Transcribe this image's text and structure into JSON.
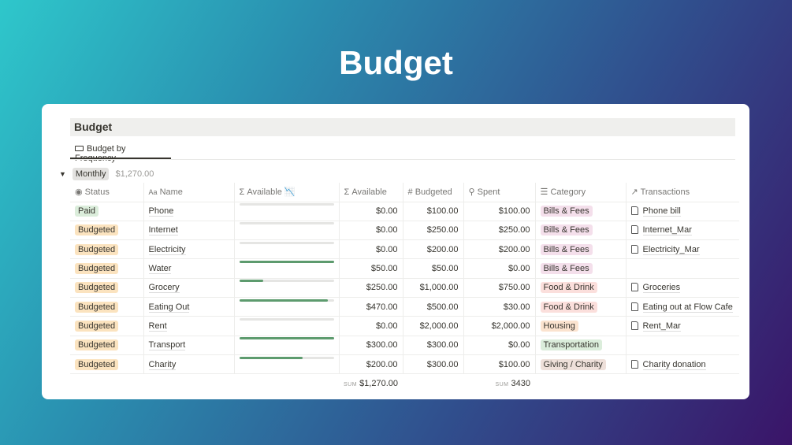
{
  "page_title": "Budget",
  "database": {
    "title": "Budget",
    "view_tab": "Budget by Frequency",
    "group": {
      "label": "Monthly",
      "sum": "$1,270.00"
    }
  },
  "columns": {
    "status": "Status",
    "name": "Name",
    "available_bar": "Available",
    "available": "Available",
    "budgeted": "Budgeted",
    "spent": "Spent",
    "category": "Category",
    "transactions": "Transactions"
  },
  "category_colors": {
    "Bills & Fees": "#f4dfeb",
    "Food & Drink": "#fbdfdc",
    "Housing": "#fbe3cf",
    "Transportation": "#dbeddb",
    "Giving / Charity": "#eee0da"
  },
  "status_colors": {
    "Paid": "#dbeddb",
    "Budgeted": "#fbe3bf"
  },
  "rows": [
    {
      "status": "Paid",
      "name": "Phone",
      "available": "$0.00",
      "budgeted": "$100.00",
      "spent": "$100.00",
      "category": "Bills & Fees",
      "transaction": "Phone bill",
      "progress": 0
    },
    {
      "status": "Budgeted",
      "name": "Internet",
      "available": "$0.00",
      "budgeted": "$250.00",
      "spent": "$250.00",
      "category": "Bills & Fees",
      "transaction": "Internet_Mar",
      "progress": 0
    },
    {
      "status": "Budgeted",
      "name": "Electricity",
      "available": "$0.00",
      "budgeted": "$200.00",
      "spent": "$200.00",
      "category": "Bills & Fees",
      "transaction": "Electricity_Mar",
      "progress": 0
    },
    {
      "status": "Budgeted",
      "name": "Water",
      "available": "$50.00",
      "budgeted": "$50.00",
      "spent": "$0.00",
      "category": "Bills & Fees",
      "transaction": "",
      "progress": 1
    },
    {
      "status": "Budgeted",
      "name": "Grocery",
      "available": "$250.00",
      "budgeted": "$1,000.00",
      "spent": "$750.00",
      "category": "Food & Drink",
      "transaction": "Groceries",
      "progress": 0.25
    },
    {
      "status": "Budgeted",
      "name": "Eating Out",
      "available": "$470.00",
      "budgeted": "$500.00",
      "spent": "$30.00",
      "category": "Food & Drink",
      "transaction": "Eating out at Flow Cafe",
      "progress": 0.94
    },
    {
      "status": "Budgeted",
      "name": "Rent",
      "available": "$0.00",
      "budgeted": "$2,000.00",
      "spent": "$2,000.00",
      "category": "Housing",
      "transaction": "Rent_Mar",
      "progress": 0
    },
    {
      "status": "Budgeted",
      "name": "Transport",
      "available": "$300.00",
      "budgeted": "$300.00",
      "spent": "$0.00",
      "category": "Transportation",
      "transaction": "",
      "progress": 1
    },
    {
      "status": "Budgeted",
      "name": "Charity",
      "available": "$200.00",
      "budgeted": "$300.00",
      "spent": "$100.00",
      "category": "Giving / Charity",
      "transaction": "Charity donation",
      "progress": 0.667
    }
  ],
  "footer": {
    "sum_label": "SUM",
    "available_sum": "$1,270.00",
    "spent_sum": "3430"
  }
}
